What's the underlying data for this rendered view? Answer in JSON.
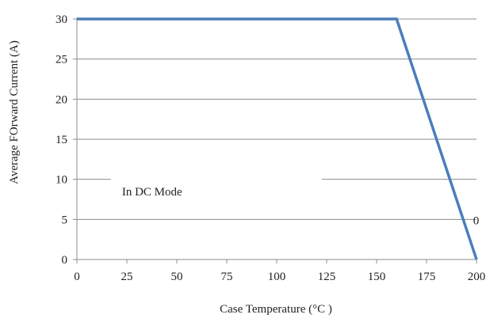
{
  "chart_data": {
    "type": "line",
    "title": "",
    "xlabel": "Case Temperature (°C )",
    "ylabel": "Average FOrward Current (A)",
    "xlim": [
      0,
      200
    ],
    "ylim": [
      0,
      30
    ],
    "x_ticks": [
      0,
      25,
      50,
      75,
      100,
      125,
      150,
      175,
      200
    ],
    "y_ticks": [
      0,
      5,
      10,
      15,
      20,
      25,
      30
    ],
    "grid": {
      "horizontal": true,
      "vertical": false
    },
    "legend": "none",
    "series": [
      {
        "color": "#4a7ebb",
        "x": [
          0,
          160,
          200
        ],
        "y": [
          30,
          30,
          0
        ]
      }
    ],
    "annotations": [
      {
        "text": "In DC Mode",
        "x": 17,
        "y": 8.5
      },
      {
        "text": "0",
        "x": 199.5,
        "y": 2
      }
    ]
  }
}
